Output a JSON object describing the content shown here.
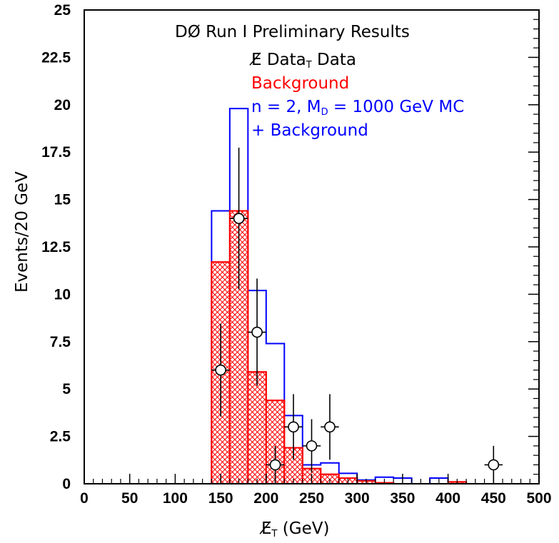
{
  "chart_data": {
    "type": "histogram",
    "title": "DØ Run I Preliminary Results",
    "xlabel": "E̸_T (GeV)",
    "ylabel": "Events/20 GeV",
    "xlim": [
      0,
      500
    ],
    "ylim": [
      0,
      25
    ],
    "x_ticks": [
      "0",
      "50",
      "100",
      "150",
      "200",
      "250",
      "300",
      "350",
      "400",
      "450",
      "500"
    ],
    "y_ticks": [
      "0",
      "2.5",
      "5",
      "7.5",
      "10",
      "12.5",
      "15",
      "17.5",
      "20",
      "22.5",
      "25"
    ],
    "bin_edges": [
      140,
      160,
      180,
      200,
      220,
      240,
      260,
      280,
      300,
      320,
      340,
      360,
      380,
      400,
      420
    ],
    "series": [
      {
        "name": "n = 2, M_D = 1000 GeV MC + Background",
        "kind": "step",
        "color": "#0000ff",
        "values": [
          14.4,
          19.8,
          10.2,
          7.4,
          3.6,
          1.0,
          1.1,
          0.55,
          0.2,
          0.35,
          0.3,
          0.0,
          0.3,
          0.0
        ]
      },
      {
        "name": "Background",
        "kind": "hatched-fill",
        "color": "#ff0000",
        "values": [
          11.7,
          14.4,
          5.9,
          4.4,
          1.9,
          0.8,
          0.5,
          0.3,
          0.15,
          0.05,
          0.0,
          0.0,
          0.0,
          0.1
        ]
      },
      {
        "name": "E̸_T Data",
        "kind": "points",
        "color": "#000000",
        "x": [
          150,
          170,
          190,
          210,
          230,
          250,
          270,
          450
        ],
        "y": [
          6,
          14,
          8,
          1,
          3,
          2,
          3,
          1
        ],
        "yerr_low": [
          2.45,
          3.74,
          2.83,
          1.0,
          1.73,
          1.41,
          1.73,
          1.0
        ],
        "yerr_high": [
          2.45,
          3.74,
          2.83,
          1.0,
          1.73,
          1.41,
          1.73,
          1.0
        ],
        "xerr": 10
      }
    ],
    "legend": {
      "title": "DØ Run I Preliminary Results",
      "data_label": "E̸ Data",
      "data_sub": "T",
      "background_label": "Background",
      "mc_label_prefix": "n = 2, M",
      "mc_label_sub": "D",
      "mc_label_suffix": " = 1000 GeV MC",
      "mc_label_line2": "+ Background"
    },
    "x_title_main": "E̸",
    "x_title_sub": "T",
    "x_title_suffix": " (GeV)",
    "colors": {
      "data": "#000000",
      "background": "#ff0000",
      "mc": "#0000ff"
    }
  }
}
